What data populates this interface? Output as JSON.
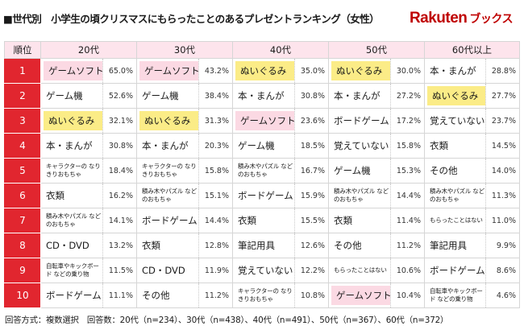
{
  "title": "■世代別　小学生の頃クリスマスにもらったことのあるプレゼントランキング（女性）",
  "logo": {
    "word": "Rakuten",
    "sub": "ブックス"
  },
  "columns": {
    "rank": "順位",
    "ages": [
      "20代",
      "30代",
      "40代",
      "50代",
      "60代以上"
    ]
  },
  "rows": [
    {
      "rank": "1",
      "cells": [
        {
          "label": "ゲームソフト",
          "pct": "65.0%",
          "hl": "pink",
          "small": false
        },
        {
          "label": "ゲームソフト",
          "pct": "43.2%",
          "hl": "pink",
          "small": false
        },
        {
          "label": "ぬいぐるみ",
          "pct": "35.0%",
          "hl": "yellow",
          "small": false
        },
        {
          "label": "ぬいぐるみ",
          "pct": "30.0%",
          "hl": "yellow",
          "small": false
        },
        {
          "label": "本・まんが",
          "pct": "28.8%",
          "hl": "",
          "small": false
        }
      ]
    },
    {
      "rank": "2",
      "cells": [
        {
          "label": "ゲーム機",
          "pct": "52.6%",
          "hl": "",
          "small": false
        },
        {
          "label": "ゲーム機",
          "pct": "38.4%",
          "hl": "",
          "small": false
        },
        {
          "label": "本・まんが",
          "pct": "30.8%",
          "hl": "",
          "small": false
        },
        {
          "label": "本・まんが",
          "pct": "27.2%",
          "hl": "",
          "small": false
        },
        {
          "label": "ぬいぐるみ",
          "pct": "27.7%",
          "hl": "yellow",
          "small": false
        }
      ]
    },
    {
      "rank": "3",
      "cells": [
        {
          "label": "ぬいぐるみ",
          "pct": "32.1%",
          "hl": "yellow",
          "small": false
        },
        {
          "label": "ぬいぐるみ",
          "pct": "31.3%",
          "hl": "yellow",
          "small": false
        },
        {
          "label": "ゲームソフト",
          "pct": "23.6%",
          "hl": "pink",
          "small": false
        },
        {
          "label": "ボードゲーム",
          "pct": "17.2%",
          "hl": "",
          "small": false
        },
        {
          "label": "覚えていない",
          "pct": "23.7%",
          "hl": "",
          "small": false
        }
      ]
    },
    {
      "rank": "4",
      "cells": [
        {
          "label": "本・まんが",
          "pct": "30.8%",
          "hl": "",
          "small": false
        },
        {
          "label": "本・まんが",
          "pct": "20.3%",
          "hl": "",
          "small": false
        },
        {
          "label": "ゲーム機",
          "pct": "18.5%",
          "hl": "",
          "small": false
        },
        {
          "label": "覚えていない",
          "pct": "15.8%",
          "hl": "",
          "small": false
        },
        {
          "label": "衣類",
          "pct": "14.5%",
          "hl": "",
          "small": false
        }
      ]
    },
    {
      "rank": "5",
      "cells": [
        {
          "label": "キャラクターの なりきりおもちゃ",
          "pct": "18.4%",
          "hl": "",
          "small": true
        },
        {
          "label": "キャラクターの なりきりおもちゃ",
          "pct": "15.8%",
          "hl": "",
          "small": true
        },
        {
          "label": "積み木やパズル などのおもちゃ",
          "pct": "16.7%",
          "hl": "",
          "small": true
        },
        {
          "label": "ゲーム機",
          "pct": "15.3%",
          "hl": "",
          "small": false
        },
        {
          "label": "その他",
          "pct": "14.0%",
          "hl": "",
          "small": false
        }
      ]
    },
    {
      "rank": "6",
      "cells": [
        {
          "label": "衣類",
          "pct": "16.2%",
          "hl": "",
          "small": false
        },
        {
          "label": "積み木やパズル などのおもちゃ",
          "pct": "15.1%",
          "hl": "",
          "small": true
        },
        {
          "label": "ボードゲーム",
          "pct": "15.9%",
          "hl": "",
          "small": false
        },
        {
          "label": "積み木やパズル などのおもちゃ",
          "pct": "14.4%",
          "hl": "",
          "small": true
        },
        {
          "label": "積み木やパズル などのおもちゃ",
          "pct": "11.3%",
          "hl": "",
          "small": true
        }
      ]
    },
    {
      "rank": "7",
      "cells": [
        {
          "label": "積み木やパズル などのおもちゃ",
          "pct": "14.1%",
          "hl": "",
          "small": true
        },
        {
          "label": "ボードゲーム",
          "pct": "14.4%",
          "hl": "",
          "small": false
        },
        {
          "label": "衣類",
          "pct": "15.5%",
          "hl": "",
          "small": false
        },
        {
          "label": "衣類",
          "pct": "11.4%",
          "hl": "",
          "small": false
        },
        {
          "label": "もらったことはない",
          "pct": "11.0%",
          "hl": "",
          "small": true
        }
      ]
    },
    {
      "rank": "8",
      "cells": [
        {
          "label": "CD・DVD",
          "pct": "13.2%",
          "hl": "",
          "small": false
        },
        {
          "label": "衣類",
          "pct": "12.8%",
          "hl": "",
          "small": false
        },
        {
          "label": "筆記用具",
          "pct": "12.6%",
          "hl": "",
          "small": false
        },
        {
          "label": "その他",
          "pct": "11.2%",
          "hl": "",
          "small": false
        },
        {
          "label": "筆記用具",
          "pct": "9.9%",
          "hl": "",
          "small": false
        }
      ]
    },
    {
      "rank": "9",
      "cells": [
        {
          "label": "自転車やキックボード などの乗り物",
          "pct": "11.5%",
          "hl": "",
          "small": true
        },
        {
          "label": "CD・DVD",
          "pct": "11.9%",
          "hl": "",
          "small": false
        },
        {
          "label": "覚えていない",
          "pct": "12.2%",
          "hl": "",
          "small": false
        },
        {
          "label": "もらったことはない",
          "pct": "10.6%",
          "hl": "",
          "small": true
        },
        {
          "label": "ボードゲーム",
          "pct": "8.6%",
          "hl": "",
          "small": false
        }
      ]
    },
    {
      "rank": "10",
      "cells": [
        {
          "label": "ボードゲーム",
          "pct": "11.1%",
          "hl": "",
          "small": false
        },
        {
          "label": "その他",
          "pct": "11.2%",
          "hl": "",
          "small": false
        },
        {
          "label": "キャラクターの なりきりおもちゃ",
          "pct": "10.8%",
          "hl": "",
          "small": true
        },
        {
          "label": "ゲームソフト",
          "pct": "10.4%",
          "hl": "pink",
          "small": false
        },
        {
          "label": "自転車やキックボード などの乗り物",
          "pct": "4.6%",
          "hl": "",
          "small": true
        }
      ]
    }
  ],
  "footnote": "回答方式：複数選択　回答数：20代（n=234）、30代（n=438）、40代（n=491）、50代（n=367）、60代（n=372）",
  "colors": {
    "rank_bg": "#e1262f",
    "header_bg": "#fde4ec",
    "highlight_yellow": "#fbec87",
    "highlight_pink": "#fbd9e3",
    "brand": "#bf0000"
  }
}
